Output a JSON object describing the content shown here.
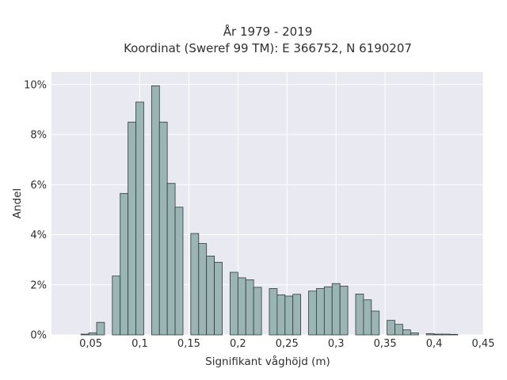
{
  "chart_data": {
    "type": "bar",
    "title_line1": "År 1979 - 2019",
    "title_line2": "Koordinat (Sweref 99 TM): E 366752, N 6190207",
    "xlabel": "Signifikant våghöjd (m)",
    "ylabel": "Andel",
    "xlim": [
      0.01,
      0.45
    ],
    "ylim": [
      0,
      10.5
    ],
    "x_ticks": [
      0.05,
      0.1,
      0.15,
      0.2,
      0.25,
      0.3,
      0.35,
      0.4,
      0.45
    ],
    "x_tick_labels": [
      "0,05",
      "0,1",
      "0,15",
      "0,2",
      "0,25",
      "0,3",
      "0,35",
      "0,4",
      "0,45"
    ],
    "y_ticks": [
      0,
      2,
      4,
      6,
      8,
      10
    ],
    "y_tick_labels": [
      "0%",
      "2%",
      "4%",
      "6%",
      "8%",
      "10%"
    ],
    "grid": true,
    "bin_width": 0.008,
    "bins": [
      {
        "x": 0.04,
        "y": 0.03
      },
      {
        "x": 0.048,
        "y": 0.08
      },
      {
        "x": 0.056,
        "y": 0.5
      },
      {
        "x": 0.072,
        "y": 2.35
      },
      {
        "x": 0.08,
        "y": 5.65
      },
      {
        "x": 0.088,
        "y": 8.5
      },
      {
        "x": 0.096,
        "y": 9.3
      },
      {
        "x": 0.112,
        "y": 9.95
      },
      {
        "x": 0.12,
        "y": 8.5
      },
      {
        "x": 0.128,
        "y": 6.05
      },
      {
        "x": 0.136,
        "y": 5.1
      },
      {
        "x": 0.152,
        "y": 4.05
      },
      {
        "x": 0.16,
        "y": 3.65
      },
      {
        "x": 0.168,
        "y": 3.15
      },
      {
        "x": 0.176,
        "y": 2.9
      },
      {
        "x": 0.192,
        "y": 2.5
      },
      {
        "x": 0.2,
        "y": 2.28
      },
      {
        "x": 0.208,
        "y": 2.2
      },
      {
        "x": 0.216,
        "y": 1.9
      },
      {
        "x": 0.232,
        "y": 1.85
      },
      {
        "x": 0.24,
        "y": 1.6
      },
      {
        "x": 0.248,
        "y": 1.55
      },
      {
        "x": 0.256,
        "y": 1.62
      },
      {
        "x": 0.272,
        "y": 1.75
      },
      {
        "x": 0.28,
        "y": 1.85
      },
      {
        "x": 0.288,
        "y": 1.92
      },
      {
        "x": 0.296,
        "y": 2.05
      },
      {
        "x": 0.304,
        "y": 1.95
      },
      {
        "x": 0.32,
        "y": 1.63
      },
      {
        "x": 0.328,
        "y": 1.4
      },
      {
        "x": 0.336,
        "y": 0.95
      },
      {
        "x": 0.352,
        "y": 0.58
      },
      {
        "x": 0.36,
        "y": 0.42
      },
      {
        "x": 0.368,
        "y": 0.2
      },
      {
        "x": 0.376,
        "y": 0.08
      },
      {
        "x": 0.392,
        "y": 0.05
      },
      {
        "x": 0.4,
        "y": 0.03
      },
      {
        "x": 0.408,
        "y": 0.03
      },
      {
        "x": 0.416,
        "y": 0.02
      }
    ],
    "colors": {
      "bar_fill": "#9ab5b3",
      "bar_stroke": "#2d3b3a",
      "plot_bg": "#e9e9f1",
      "grid": "#ffffff"
    }
  }
}
